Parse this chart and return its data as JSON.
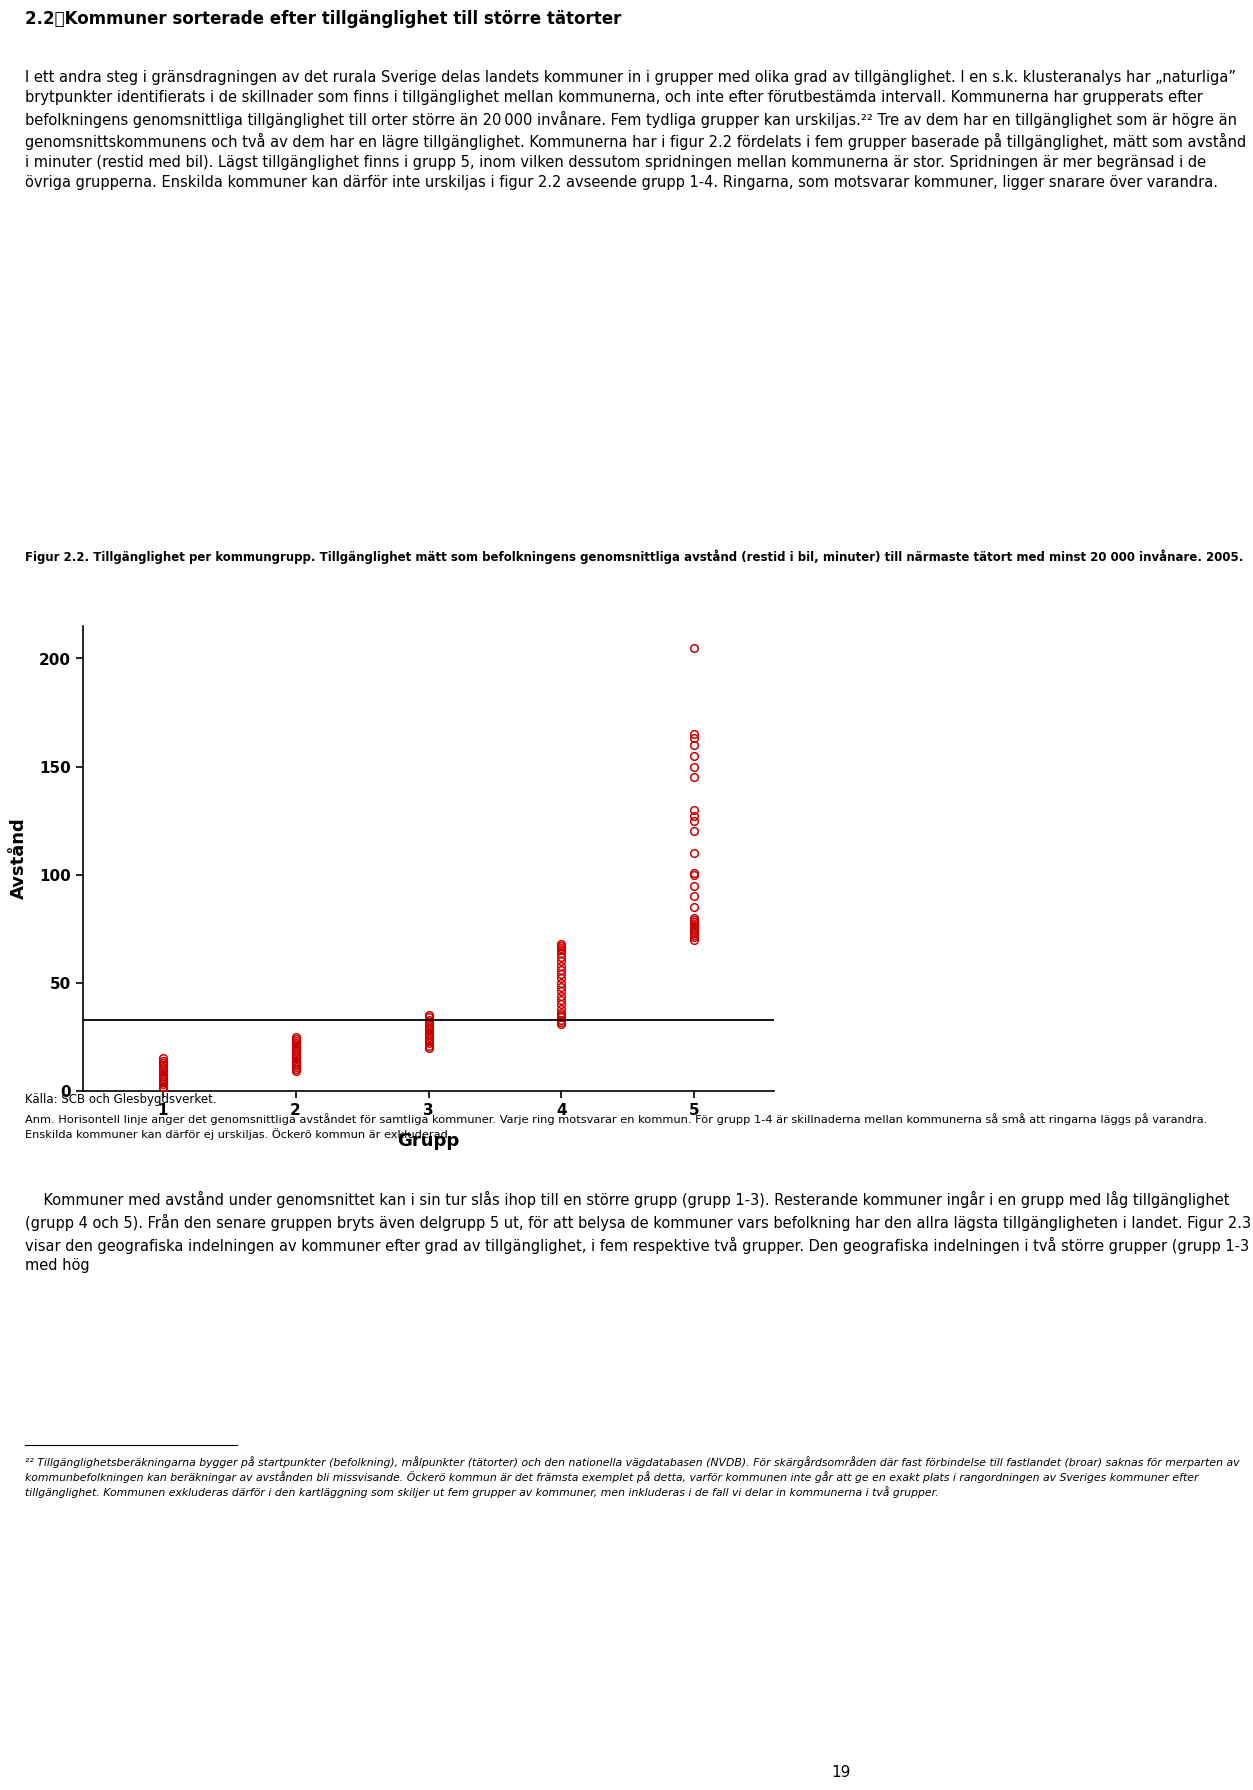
{
  "fig_caption": "Figur 2.2. Tillgänglighet per kommungrupp. Tillgänglighet mätt som befolkningens genomsnittliga avstånd (restid i bil, minuter) till närmaste tätort med minst 20 000 invånare. 2005.",
  "xlabel": "Grupp",
  "ylabel": "Avstånd",
  "ylim": [
    0,
    215
  ],
  "yticks": [
    0,
    50,
    100,
    150,
    200
  ],
  "xticks": [
    1,
    2,
    3,
    4,
    5
  ],
  "hline": 33,
  "scatter_color": "#cc0000",
  "groups": {
    "1": [
      1,
      2,
      3,
      4,
      5,
      6,
      7,
      8,
      9,
      10,
      11,
      12,
      13,
      14,
      15
    ],
    "2": [
      9,
      10,
      11,
      12,
      13,
      14,
      15,
      16,
      17,
      18,
      19,
      20,
      21,
      22,
      23,
      24,
      25
    ],
    "3": [
      20,
      21,
      22,
      23,
      24,
      25,
      26,
      27,
      28,
      29,
      30,
      31,
      32,
      33,
      34,
      35
    ],
    "4": [
      31,
      32,
      33,
      34,
      35,
      36,
      38,
      40,
      42,
      44,
      46,
      48,
      50,
      52,
      54,
      56,
      58,
      60,
      62,
      64,
      65,
      66,
      67,
      68
    ],
    "5": [
      70,
      71,
      72,
      73,
      74,
      75,
      76,
      77,
      78,
      79,
      80,
      85,
      90,
      95,
      100,
      101,
      110,
      120,
      125,
      127,
      130,
      145,
      150,
      155,
      160,
      163,
      165,
      205
    ]
  },
  "text_above_1": "2.2\tKommuner sorterade efter tillgänglighet till större tätorter",
  "text_above_body": "I ett andra steg i gränsdragningen av det rurala Sverige delas landets kommuner in i grupper med olika grad av tillgänglighet. I en s.k. klusteranalys har „naturliga” brytpunkter identifierats i de skillnader som finns i tillgänglighet mellan kommunerna, och inte efter förutbestämda intervall. Kommunerna har grupperats efter befolkningens genomsnittliga tillgänglighet till orter större än 20 000 invånare. Fem tydliga grupper kan urskiljas.²² Tre av dem har en tillgänglighet som är högre än genomsnittskommunens och två av dem har en lägre tillgänglighet. Kommunerna har i figur 2.2 fördelats i fem grupper baserade på tillgänglighet, mätt som avstånd i minuter (restid med bil). Lägst tillgänglighet finns i grupp 5, inom vilken dessutom spridningen mellan kommunerna är stor. Spridningen är mer begränsad i de övriga grupperna. Enskilda kommuner kan därför inte urskiljas i figur 2.2 avseende grupp 1-4. Ringarna, som motsvarar kommuner, ligger snarare över varandra.",
  "caption_source": "Källa: SCB och Glesbygdsverket.",
  "caption_note": "Anm. Horisontell linje anger det genomsnittliga avståndet för samtliga kommuner. Varje ring motsvarar en kommun. För grupp 1-4 är skillnaderna mellan kommunerna så små att ringarna läggs på varandra. Enskilda kommuner kan därför ej urskiljas. Öckerö kommun är exkluderad.",
  "text_below_body": "    Kommuner med avstånd under genomsnittet kan i sin tur slås ihop till en större grupp (grupp 1-3). Resterande kommuner ingår i en grupp med låg tillgänglighet (grupp 4 och 5). Från den senare gruppen bryts även delgrupp 5 ut, för att belysa de kommuner vars befolkning har den allra lägsta tillgängligheten i landet. Figur 2.3 visar den geografiska indelningen av kommuner efter grad av tillgänglighet, i fem respektive två grupper. Den geografiska indelningen i två större grupper (grupp 1-3 med hög",
  "footnote_line": true,
  "footnote": "²² Tillgänglighetsberäkningarna bygger på startpunkter (befolkning), målpunkter (tätorter) och den nationella vägdatabasen (NVDB). För skärgårdsområden där fast förbindelse till fastlandet (broar) saknas för merparten av kommunbefolkningen kan beräkningar av avstånden bli missvisande. Öckerö kommun är det främsta exemplet på detta, varför kommunen inte går att ge en exakt plats i rangordningen av Sveriges kommuner efter tillgänglighet. Kommunen exkluderas därför i den kartläggning som skiljer ut fem grupper av kommuner, men inkluderas i de fall vi delar in kommunerna i två grupper.",
  "page_number": "19",
  "fig_width": 9.6,
  "fig_height": 18.23
}
